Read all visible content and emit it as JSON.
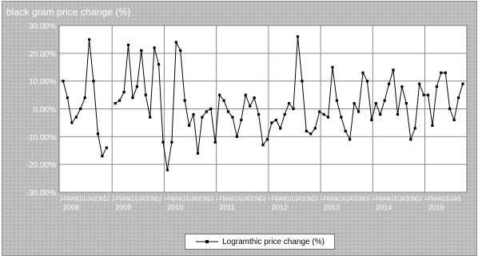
{
  "chart_data": {
    "type": "line",
    "title": "black gram price change (%)",
    "xlabel": "",
    "ylabel": "",
    "ylim": [
      -30,
      30
    ],
    "yticks": [
      30,
      20,
      10,
      0,
      -10,
      -20,
      -30
    ],
    "ytick_labels": [
      "30.00%",
      "20.00%",
      "10.00%",
      "0.00%",
      "-10.00%",
      "-20.00%",
      "-30.00%"
    ],
    "month_labels": [
      "J",
      "F",
      "M",
      "A",
      "M",
      "J",
      "J",
      "A",
      "S",
      "O",
      "N",
      "D"
    ],
    "month_rows": [
      "J-FMAMJJUJASONDJ",
      "J-FMAMJJUJASONDJ",
      "I-FMAMJJUJASONDJ",
      "I-FMAMJJUJASONDJ",
      "I-FMAMJJUJASONDJ",
      "I-FMAMJJUJASONDJ",
      "I-FMAMJJUJASONDJ",
      "I-FMAMJJUJAS"
    ],
    "years": [
      "2008",
      "2009",
      "2010",
      "2011",
      "2012",
      "2013",
      "2014",
      "2015"
    ],
    "grid": true,
    "legend_position": "bottom-center",
    "series": [
      {
        "name": "Logramthic price change (%)",
        "segments": [
          {
            "start_index": 0,
            "values": [
              10,
              4,
              -5,
              -3,
              0,
              4,
              25,
              10,
              -9,
              -17,
              -14
            ]
          },
          {
            "start_index": 12,
            "values": [
              2,
              3,
              6,
              23,
              4,
              8,
              21,
              5,
              -3,
              22,
              16,
              -12,
              -22,
              -12,
              24,
              21,
              3,
              -6,
              -2,
              -16,
              -3,
              -1,
              0,
              -12,
              5,
              3,
              -1,
              -3,
              -10,
              -4,
              5,
              1,
              4,
              -2,
              -13,
              -11,
              -5,
              -4,
              -7,
              -2,
              2,
              0,
              26,
              10,
              -8,
              -9,
              -7,
              -1,
              -2,
              -3,
              15,
              3,
              -3,
              -8,
              -11,
              2,
              -1,
              13,
              10,
              -4,
              2,
              -2,
              3,
              9,
              14,
              -2,
              8,
              2,
              -11,
              -7,
              9,
              5,
              5,
              -6,
              8,
              13,
              13,
              0,
              -4,
              4,
              9
            ]
          }
        ]
      }
    ]
  }
}
